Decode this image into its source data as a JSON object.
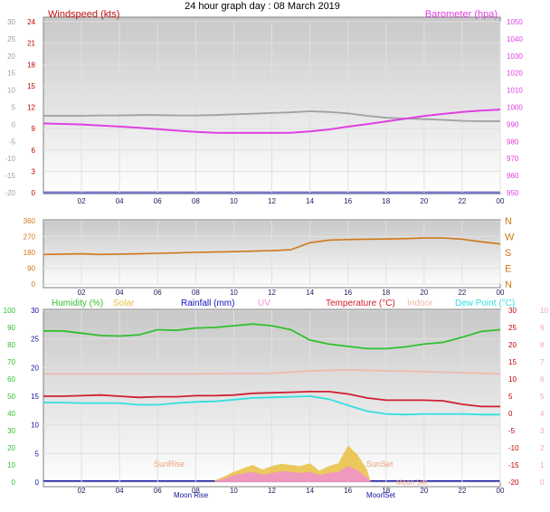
{
  "title": "24 hour graph day : 08 March 2019",
  "colors": {
    "wind": "#a0a0a0",
    "baro": "#e040e0",
    "winddir": "#d07818",
    "humidity": "#30c030",
    "temperature": "#d02030",
    "indoor": "#f0b8a8",
    "dewpoint": "#30e0e0",
    "solar": "#e8c040",
    "uv": "#f090d0",
    "rain": "#1010c0"
  },
  "x_ticks": [
    "02",
    "04",
    "06",
    "08",
    "10",
    "12",
    "14",
    "16",
    "18",
    "20",
    "22",
    "00"
  ],
  "chart_data": [
    {
      "type": "line",
      "name": "wind-baro",
      "left_label": "Windspeed (kts)",
      "right_label": "Barometer (hpa)",
      "left_ticks": [
        "24",
        "21",
        "18",
        "15",
        "12",
        "9",
        "6",
        "3",
        "0"
      ],
      "left_ticks_far": [
        "30",
        "25",
        "20",
        "15",
        "10",
        "5",
        "0",
        "-5",
        "-10",
        "-15",
        "-20"
      ],
      "right_ticks": [
        "1050",
        "1040",
        "1030",
        "1020",
        "1010",
        "1000",
        "990",
        "980",
        "970",
        "960",
        "950"
      ],
      "ylim_left": [
        -20,
        30
      ],
      "ylim_right": [
        950,
        1050
      ],
      "series": [
        {
          "key": "wind",
          "x": [
            0,
            1,
            2,
            3,
            4,
            5,
            6,
            7,
            8,
            9,
            10,
            11,
            12,
            13,
            14,
            15,
            16,
            17,
            18,
            19,
            20,
            21,
            22,
            23,
            24
          ],
          "y": [
            2.5,
            2.5,
            2.5,
            2.6,
            2.6,
            2.7,
            2.7,
            2.6,
            2.6,
            2.7,
            2.9,
            3.1,
            3.3,
            3.5,
            3.8,
            3.6,
            3.2,
            2.5,
            1.9,
            1.7,
            1.5,
            1.3,
            1.0,
            0.9,
            0.9
          ]
        },
        {
          "key": "baro",
          "x": [
            0,
            1,
            2,
            3,
            4,
            5,
            6,
            7,
            8,
            9,
            10,
            11,
            12,
            13,
            14,
            15,
            16,
            17,
            18,
            19,
            20,
            21,
            22,
            23,
            24
          ],
          "y": [
            990.5,
            990.2,
            989.9,
            989.3,
            988.7,
            988.0,
            987.2,
            986.3,
            985.6,
            985.1,
            985.0,
            985.0,
            985.0,
            985.1,
            985.8,
            987.0,
            988.6,
            990.1,
            991.7,
            993.3,
            994.8,
            996.1,
            997.2,
            998.0,
            998.6
          ]
        }
      ]
    },
    {
      "type": "line",
      "name": "wind-direction",
      "left_ticks": [
        "360",
        "270",
        "180",
        "90",
        "0"
      ],
      "compass": [
        "N",
        "W",
        "S",
        "E",
        "N"
      ],
      "ylim": [
        0,
        360
      ],
      "series": [
        {
          "key": "winddir",
          "x": [
            0,
            1,
            2,
            3,
            4,
            5,
            6,
            7,
            8,
            9,
            10,
            11,
            12,
            13,
            14,
            15,
            16,
            17,
            18,
            19,
            20,
            21,
            22,
            23,
            24
          ],
          "y": [
            168,
            170,
            172,
            168,
            170,
            172,
            175,
            177,
            180,
            182,
            184,
            187,
            190,
            195,
            235,
            250,
            253,
            255,
            256,
            258,
            262,
            262,
            255,
            240,
            228
          ]
        }
      ]
    },
    {
      "type": "line",
      "name": "temp-humidity",
      "legend": [
        "Humidity (%)",
        "Solar",
        "Rainfall (mm)",
        "UV",
        "Temperature (°C)",
        "Indoor",
        "Dew Point (°C)"
      ],
      "left_ticks_far": [
        "100",
        "90",
        "80",
        "70",
        "60",
        "50",
        "40",
        "30",
        "20",
        "10",
        "0"
      ],
      "left_ticks": [
        "30",
        "25",
        "20",
        "15",
        "10",
        "5",
        "0"
      ],
      "right_ticks": [
        "30",
        "25",
        "20",
        "15",
        "10",
        "5",
        "0",
        "-5",
        "-10",
        "-15",
        "-20"
      ],
      "right_ticks_far": [
        "10",
        "9",
        "8",
        "7",
        "6",
        "5",
        "4",
        "3",
        "2",
        "1",
        "0"
      ],
      "ylim_left": [
        0,
        30
      ],
      "ylim_right": [
        -20,
        30
      ],
      "annotations": [
        "SunRise",
        "SunSet",
        "Moon Rise",
        "MoonSet",
        "Moon Set"
      ],
      "series": [
        {
          "key": "humidity",
          "x": [
            0,
            1,
            2,
            3,
            4,
            5,
            6,
            7,
            8,
            9,
            10,
            11,
            12,
            13,
            14,
            15,
            16,
            17,
            18,
            19,
            20,
            21,
            22,
            23,
            24
          ],
          "y": [
            26.4,
            26.4,
            26.0,
            25.6,
            25.5,
            25.7,
            26.6,
            26.5,
            26.9,
            27.0,
            27.3,
            27.6,
            27.3,
            26.6,
            24.8,
            24.1,
            23.7,
            23.3,
            23.3,
            23.6,
            24.1,
            24.4,
            25.3,
            26.3,
            26.6
          ]
        },
        {
          "key": "temperature",
          "x": [
            0,
            1,
            2,
            3,
            4,
            5,
            6,
            7,
            8,
            9,
            10,
            11,
            12,
            13,
            14,
            15,
            16,
            17,
            18,
            19,
            20,
            21,
            22,
            23,
            24
          ],
          "y": [
            15.0,
            15.0,
            15.1,
            15.2,
            15.0,
            14.8,
            14.9,
            14.9,
            15.1,
            15.1,
            15.2,
            15.5,
            15.6,
            15.7,
            15.8,
            15.8,
            15.4,
            14.7,
            14.3,
            14.3,
            14.3,
            14.2,
            13.6,
            13.2,
            13.2
          ]
        },
        {
          "key": "dewpoint",
          "x": [
            0,
            1,
            2,
            3,
            4,
            5,
            6,
            7,
            8,
            9,
            10,
            11,
            12,
            13,
            14,
            15,
            16,
            17,
            18,
            19,
            20,
            21,
            22,
            23,
            24
          ],
          "y": [
            13.9,
            13.9,
            13.8,
            13.8,
            13.8,
            13.5,
            13.5,
            13.8,
            14.0,
            14.1,
            14.4,
            14.7,
            14.8,
            14.9,
            15.0,
            14.5,
            13.4,
            12.4,
            11.9,
            11.8,
            11.9,
            11.9,
            11.9,
            11.8,
            11.8
          ]
        },
        {
          "key": "indoor",
          "x": [
            0,
            4,
            8,
            12,
            14,
            16,
            20,
            24
          ],
          "y": [
            18.9,
            18.9,
            18.9,
            19.0,
            19.4,
            19.6,
            19.3,
            18.9
          ]
        },
        {
          "key": "solar",
          "x": [
            9.0,
            9.5,
            10.0,
            10.5,
            11.0,
            11.5,
            12.0,
            12.5,
            13.0,
            13.5,
            14.0,
            14.5,
            15.0,
            15.5,
            16.0,
            16.5,
            17.0,
            17.2
          ],
          "y": [
            0.3,
            1.0,
            1.8,
            2.4,
            3.0,
            2.2,
            2.8,
            3.2,
            3.0,
            2.8,
            3.3,
            2.0,
            2.8,
            3.3,
            6.4,
            4.8,
            2.2,
            0
          ]
        },
        {
          "key": "uv",
          "x": [
            9.0,
            9.5,
            10.0,
            10.5,
            11.0,
            11.5,
            12.0,
            12.5,
            13.0,
            13.5,
            14.0,
            14.5,
            15.0,
            15.5,
            16.0,
            16.5,
            17.0,
            17.2
          ],
          "y": [
            0.2,
            0.6,
            1.2,
            1.5,
            1.8,
            1.3,
            1.6,
            1.9,
            1.8,
            1.6,
            1.8,
            1.2,
            1.6,
            1.8,
            2.8,
            2.1,
            0.8,
            0
          ]
        }
      ]
    }
  ]
}
